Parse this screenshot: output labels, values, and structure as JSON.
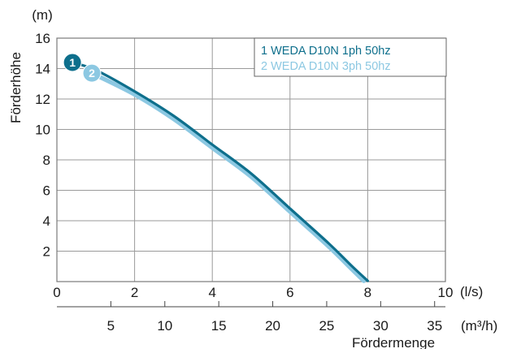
{
  "chart_data": {
    "type": "line",
    "ylabel": "Förderhöhe",
    "yunit": "(m)",
    "xlabel": "Fördermenge",
    "x_primary_unit": "(l/s)",
    "x_secondary_unit": "(m³/h)",
    "xlim": [
      0,
      10
    ],
    "ylim": [
      0,
      16
    ],
    "x_primary_ticks": [
      "0",
      "2",
      "4",
      "6",
      "8",
      "10"
    ],
    "x_secondary_ticks": [
      "5",
      "10",
      "15",
      "20",
      "25",
      "30",
      "35"
    ],
    "y_ticks": [
      "2",
      "4",
      "6",
      "8",
      "10",
      "12",
      "14",
      "16"
    ],
    "grid": true,
    "legend_position": "top-right",
    "series": [
      {
        "name": "1 WEDA D10N 1ph 50hz",
        "marker": "1",
        "color": "#0e6f8c",
        "points": [
          [
            0.4,
            14.4
          ],
          [
            1,
            13.9
          ],
          [
            2,
            12.5
          ],
          [
            3,
            10.9
          ],
          [
            4,
            9.0
          ],
          [
            5,
            7.1
          ],
          [
            6,
            4.8
          ],
          [
            7,
            2.5
          ],
          [
            7.6,
            1.0
          ],
          [
            8.0,
            0.05
          ]
        ]
      },
      {
        "name": "2 WEDA D10N 3ph 50hz",
        "marker": "2",
        "color": "#8cc8e2",
        "points": [
          [
            0.9,
            13.7
          ],
          [
            2,
            12.3
          ],
          [
            3,
            10.7
          ],
          [
            4,
            8.8
          ],
          [
            5,
            6.9
          ],
          [
            6,
            4.6
          ],
          [
            7,
            2.3
          ],
          [
            7.6,
            0.8
          ],
          [
            7.9,
            0.05
          ]
        ]
      }
    ]
  }
}
